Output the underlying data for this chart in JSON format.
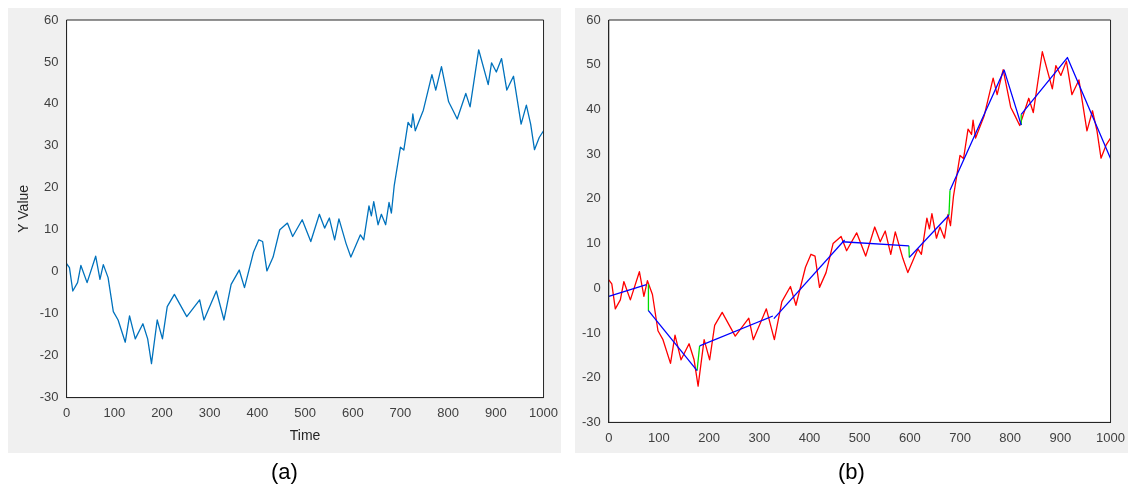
{
  "chart_data": [
    {
      "type": "line",
      "xlabel": "Time",
      "ylabel": "Y Value",
      "annotations": [
        "(a)"
      ],
      "marker": "none",
      "x": [
        0,
        6,
        13,
        23,
        30,
        43,
        61,
        70,
        77,
        87,
        98,
        108,
        123,
        132,
        144,
        160,
        170,
        178,
        190,
        201,
        211,
        226,
        252,
        279,
        288,
        314,
        330,
        345,
        362,
        373,
        392,
        403,
        411,
        420,
        433,
        447,
        463,
        474,
        494,
        512,
        530,
        541,
        551,
        562,
        571,
        586,
        596,
        616,
        623,
        634,
        639,
        644,
        653,
        660,
        669,
        676,
        681,
        687,
        700,
        707,
        716,
        723,
        726,
        731,
        748,
        766,
        774,
        786,
        801,
        810,
        819,
        837,
        846,
        864,
        884,
        891,
        901,
        912,
        923,
        937,
        953,
        964,
        973,
        981,
        991,
        1000
      ],
      "series": [
        {
          "color": "#0072bd",
          "values": [
            1.9,
            1,
            -4.6,
            -2.6,
            1.5,
            -2.6,
            3.7,
            -1.8,
            1.7,
            -1.4,
            -9.5,
            -11.5,
            -16.8,
            -10.5,
            -16,
            -12.4,
            -16,
            -21.9,
            -11.5,
            -16,
            -8.3,
            -5.4,
            -10.7,
            -6.7,
            -11.5,
            -4.6,
            -11.5,
            -3,
            0.4,
            -3.8,
            4.7,
            7.6,
            7.2,
            0.2,
            3.5,
            10,
            11.6,
            8.4,
            12.4,
            7.2,
            13.7,
            10.4,
            12.8,
            7.6,
            12.6,
            6.7,
            3.5,
            8.8,
            7.6,
            15.7,
            13.3,
            16.7,
            11.2,
            13.7,
            11.2,
            16.5,
            14,
            20.6,
            29.7,
            29,
            35.6,
            34.4,
            37.6,
            33.6,
            38.5,
            47,
            43.3,
            48.9,
            40.5,
            38.5,
            36.4,
            42.5,
            39.3,
            52.9,
            44.6,
            49.8,
            47.6,
            50.8,
            43.3,
            46.6,
            35.2,
            39.7,
            35.2,
            29.1,
            32,
            33.6
          ]
        }
      ],
      "xlim": [
        0,
        1000
      ],
      "xticks": [
        0,
        100,
        200,
        300,
        400,
        500,
        600,
        700,
        800,
        900,
        1000
      ],
      "ylim": [
        -30,
        60
      ],
      "yticks": [
        -30,
        -20,
        -10,
        0,
        10,
        20,
        30,
        40,
        50,
        60
      ]
    },
    {
      "type": "line",
      "annotations": [
        "(b)"
      ],
      "marker": "none",
      "x": [
        0,
        6,
        13,
        23,
        30,
        43,
        61,
        70,
        77,
        87,
        98,
        108,
        123,
        132,
        144,
        160,
        170,
        178,
        190,
        201,
        211,
        226,
        252,
        279,
        288,
        314,
        330,
        345,
        362,
        373,
        392,
        403,
        411,
        420,
        433,
        447,
        463,
        474,
        494,
        512,
        530,
        541,
        551,
        562,
        571,
        586,
        596,
        616,
        623,
        634,
        639,
        644,
        653,
        660,
        669,
        676,
        681,
        687,
        700,
        707,
        716,
        723,
        726,
        731,
        748,
        766,
        774,
        786,
        801,
        810,
        819,
        837,
        846,
        864,
        884,
        891,
        901,
        912,
        923,
        937,
        953,
        964,
        973,
        981,
        991,
        1000
      ],
      "series": [
        {
          "color": "#ff0000",
          "values": [
            1.9,
            1,
            -4.6,
            -2.6,
            1.5,
            -2.6,
            3.7,
            -1.8,
            1.7,
            -1.4,
            -9.5,
            -11.5,
            -16.8,
            -10.5,
            -16,
            -12.4,
            -16,
            -21.9,
            -11.5,
            -16,
            -8.3,
            -5.4,
            -10.7,
            -6.7,
            -11.5,
            -4.6,
            -11.5,
            -3,
            0.4,
            -3.8,
            4.7,
            7.6,
            7.2,
            0.2,
            3.5,
            10,
            11.6,
            8.4,
            12.4,
            7.2,
            13.7,
            10.4,
            12.8,
            7.6,
            12.6,
            6.7,
            3.5,
            8.8,
            7.6,
            15.7,
            13.3,
            16.7,
            11.2,
            13.7,
            11.2,
            16.5,
            14,
            20.6,
            29.7,
            29,
            35.6,
            34.4,
            37.6,
            33.6,
            38.5,
            47,
            43.3,
            48.9,
            40.5,
            38.5,
            36.4,
            42.5,
            39.3,
            52.9,
            44.6,
            49.8,
            47.6,
            50.8,
            43.3,
            46.6,
            35.2,
            39.7,
            35.2,
            29.1,
            32,
            33.6
          ]
        },
        {
          "color": "#00dd00",
          "x": [
            79,
            79
          ],
          "values": [
            0.8,
            -5
          ]
        },
        {
          "color": "#00dd00",
          "x": [
            176,
            181
          ],
          "values": [
            -18.4,
            -12.9
          ]
        },
        {
          "color": "#00dd00",
          "x": [
            598,
            599
          ],
          "values": [
            9.5,
            6.9
          ]
        },
        {
          "color": "#00dd00",
          "x": [
            678,
            680
          ],
          "values": [
            16.4,
            21.9
          ]
        },
        {
          "color": "#00dd00",
          "x": [
            822,
            822
          ],
          "values": [
            36.5,
            38.9
          ]
        },
        {
          "color": "#0000ff",
          "x": [
            0,
            75
          ],
          "values": [
            -1.8,
            0.8
          ]
        },
        {
          "color": "#0000ff",
          "x": [
            79,
            176
          ],
          "values": [
            -5,
            -18.4
          ]
        },
        {
          "color": "#0000ff",
          "x": [
            181,
            327
          ],
          "values": [
            -12.9,
            -6.2
          ]
        },
        {
          "color": "#0000ff",
          "x": [
            329,
            470
          ],
          "values": [
            -6.8,
            10.8
          ]
        },
        {
          "color": "#0000ff",
          "x": [
            465,
            598
          ],
          "values": [
            10.4,
            9.5
          ]
        },
        {
          "color": "#0000ff",
          "x": [
            599,
            678
          ],
          "values": [
            6.9,
            16.4
          ]
        },
        {
          "color": "#0000ff",
          "x": [
            680,
            788,
            822
          ],
          "values": [
            21.9,
            48.8,
            36.5
          ]
        },
        {
          "color": "#0000ff",
          "x": [
            822,
            914,
            1000
          ],
          "values": [
            38.9,
            51.6,
            29
          ]
        }
      ],
      "xlim": [
        0,
        1000
      ],
      "xticks": [
        0,
        100,
        200,
        300,
        400,
        500,
        600,
        700,
        800,
        900,
        1000
      ],
      "ylim": [
        -30,
        60
      ],
      "yticks": [
        -30,
        -20,
        -10,
        0,
        10,
        20,
        30,
        40,
        50,
        60
      ]
    }
  ]
}
